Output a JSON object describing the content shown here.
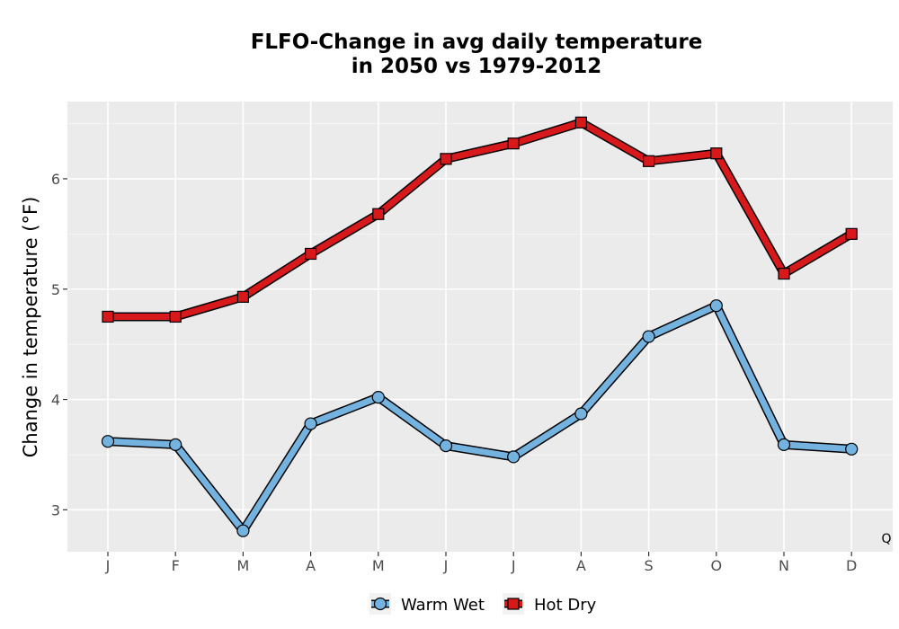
{
  "chart_data": {
    "type": "line",
    "title": [
      "FLFO-Change in avg daily temperature",
      "in 2050 vs 1979-2012"
    ],
    "xlabel": "",
    "ylabel": "Change in temperature (°F)",
    "categories": [
      "J",
      "F",
      "M",
      "A",
      "M",
      "J",
      "J",
      "A",
      "S",
      "O",
      "N",
      "D"
    ],
    "ylim": [
      2.62,
      6.7
    ],
    "yticks": [
      3,
      4,
      5,
      6
    ],
    "grid": true,
    "legend_position": "bottom",
    "corner_label": "Q",
    "series": [
      {
        "name": "Warm Wet",
        "marker": "circle",
        "color": "#74b3e0",
        "values": [
          3.62,
          3.59,
          2.81,
          3.78,
          4.02,
          3.58,
          3.48,
          3.87,
          4.57,
          4.85,
          3.59,
          3.55
        ]
      },
      {
        "name": "Hot Dry",
        "marker": "square",
        "color": "#d7191c",
        "values": [
          4.75,
          4.75,
          4.93,
          5.32,
          5.68,
          6.18,
          6.32,
          6.51,
          6.16,
          6.23,
          5.14,
          5.5
        ]
      }
    ]
  }
}
